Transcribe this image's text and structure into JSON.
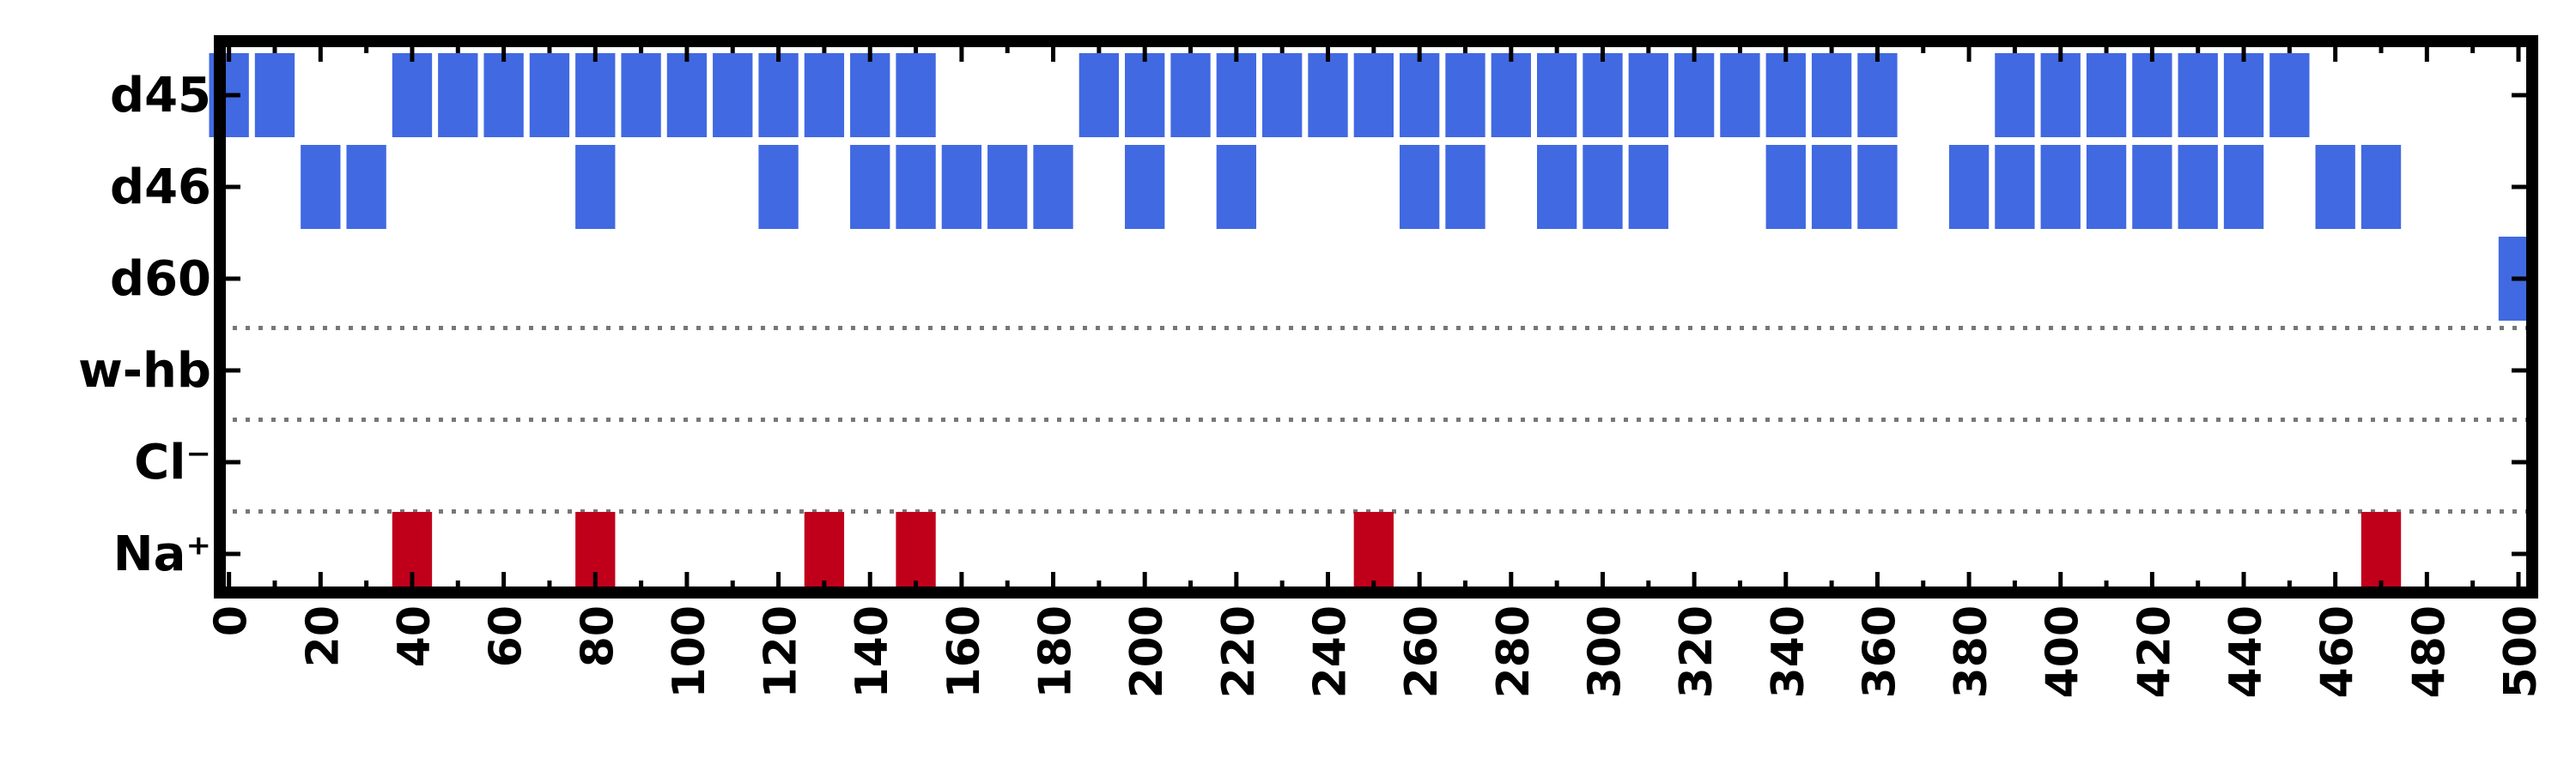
{
  "chart_data": {
    "type": "heatmap",
    "title": "",
    "xlabel": "",
    "ylabel": "",
    "xlim": [
      -2,
      503
    ],
    "x_ticks": [
      0,
      20,
      40,
      60,
      80,
      100,
      120,
      140,
      160,
      180,
      200,
      220,
      240,
      260,
      280,
      300,
      320,
      340,
      360,
      380,
      400,
      420,
      440,
      460,
      480,
      500
    ],
    "x_minor_step": 10,
    "y_categories": [
      "d45",
      "d46",
      "d60",
      "w-hb",
      "Cl⁻",
      "Na⁺"
    ],
    "bin_width": 10,
    "separators_after_rows": [
      2,
      3,
      4
    ],
    "grid": false,
    "colors": {
      "water_sites": "#4169e1",
      "ions": "#c0001a",
      "frame": "#000000",
      "separator": "#777777"
    },
    "series": [
      {
        "name": "d45",
        "color_key": "water_sites",
        "bins": [
          0,
          10,
          40,
          50,
          60,
          70,
          80,
          90,
          100,
          110,
          120,
          130,
          140,
          150,
          190,
          200,
          210,
          220,
          230,
          240,
          250,
          260,
          270,
          280,
          290,
          300,
          310,
          320,
          330,
          340,
          350,
          360,
          390,
          400,
          410,
          420,
          430,
          440,
          450
        ]
      },
      {
        "name": "d46",
        "color_key": "water_sites",
        "bins": [
          20,
          30,
          80,
          120,
          140,
          150,
          160,
          170,
          180,
          200,
          220,
          260,
          270,
          290,
          300,
          310,
          340,
          350,
          360,
          380,
          390,
          400,
          410,
          420,
          430,
          440,
          460,
          470
        ]
      },
      {
        "name": "d60",
        "color_key": "water_sites",
        "bins": [
          500
        ]
      },
      {
        "name": "w-hb",
        "color_key": "water_sites",
        "bins": []
      },
      {
        "name": "Cl⁻",
        "color_key": "ions",
        "bins": []
      },
      {
        "name": "Na⁺",
        "color_key": "ions",
        "bins": [
          40,
          80,
          130,
          150,
          250,
          470
        ]
      }
    ]
  }
}
